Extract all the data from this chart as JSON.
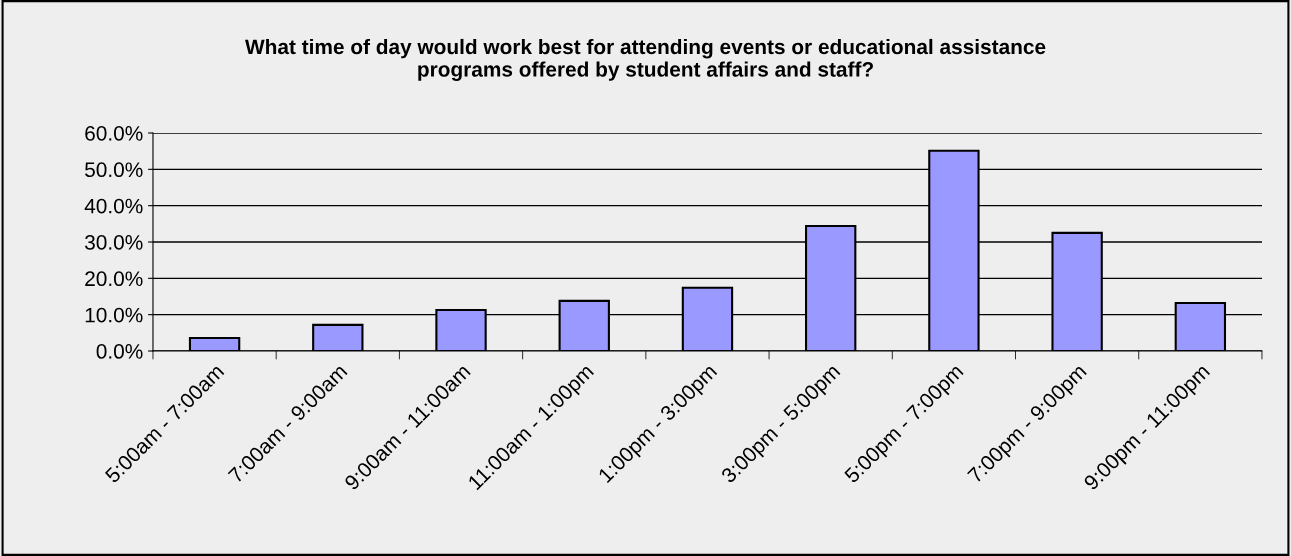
{
  "chart_data": {
    "type": "bar",
    "title": "What time of day would work best for attending events or educational assistance\nprograms offered by student affairs and staff?",
    "categories": [
      "5:00am - 7:00am",
      "7:00am - 9:00am",
      "9:00am - 11:00am",
      "11:00am - 1:00pm",
      "1:00pm - 3:00pm",
      "3:00pm - 5:00pm",
      "5:00pm - 7:00pm",
      "7:00pm - 9:00pm",
      "9:00pm - 11:00pm"
    ],
    "values": [
      3.6,
      7.2,
      11.3,
      13.8,
      17.4,
      34.4,
      55.1,
      32.5,
      13.2
    ],
    "color": "#9999ff",
    "ylim": [
      0,
      60
    ],
    "yticks": [
      {
        "value": 0,
        "label": "0.0%"
      },
      {
        "value": 10,
        "label": "10.0%"
      },
      {
        "value": 20,
        "label": "20.0%"
      },
      {
        "value": 30,
        "label": "30.0%"
      },
      {
        "value": 40,
        "label": "40.0%"
      },
      {
        "value": 50,
        "label": "50.0%"
      },
      {
        "value": 60,
        "label": "60.0%"
      }
    ],
    "grid": "y",
    "legend": false
  }
}
